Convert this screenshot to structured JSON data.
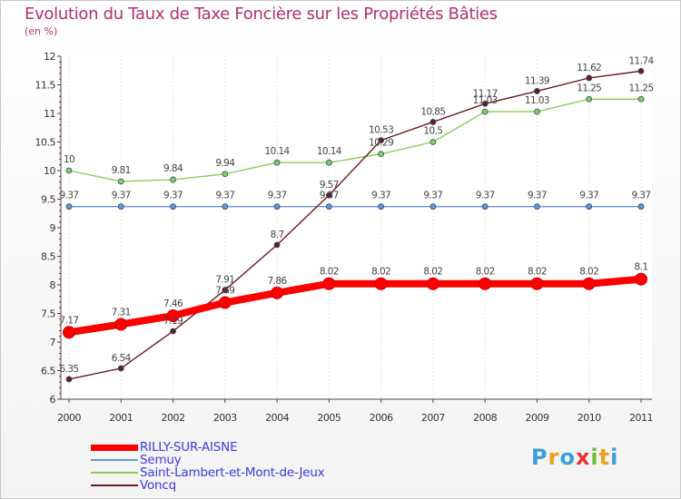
{
  "chart_data": {
    "type": "line",
    "title": "Evolution du Taux de Taxe Foncière sur les Propriétés Bâties",
    "subtitle": "(en %)",
    "categories": [
      "2000",
      "2001",
      "2002",
      "2003",
      "2004",
      "2005",
      "2006",
      "2007",
      "2008",
      "2009",
      "2010",
      "2011"
    ],
    "ylim": [
      6,
      12
    ],
    "yticks": [
      "6",
      "6.5",
      "7",
      "7.5",
      "8",
      "8.5",
      "9",
      "9.5",
      "10",
      "10.5",
      "11",
      "11.5",
      "12"
    ],
    "grid": "vertical dotted",
    "series": [
      {
        "name": "RILLY-SUR-AISNE",
        "color": "#ff0000",
        "values": [
          7.17,
          7.31,
          7.46,
          7.69,
          7.86,
          8.02,
          8.02,
          8.02,
          8.02,
          8.02,
          8.02,
          8.1
        ],
        "labels": [
          "7.17",
          "7.31",
          "7.46",
          "7.69",
          "7.86",
          "8.02",
          "8.02",
          "8.02",
          "8.02",
          "8.02",
          "8.02",
          "8.1"
        ]
      },
      {
        "name": "Semuy",
        "color": "#6699cc",
        "values": [
          9.37,
          9.37,
          9.37,
          9.37,
          9.37,
          9.37,
          9.37,
          9.37,
          9.37,
          9.37,
          9.37,
          9.37
        ],
        "labels": [
          "9.37",
          "9.37",
          "9.37",
          "9.37",
          "9.37",
          "9.37",
          "9.37",
          "9.37",
          "9.37",
          "9.37",
          "9.37",
          "9.37"
        ]
      },
      {
        "name": "Saint-Lambert-et-Mont-de-Jeux",
        "color": "#88cc55",
        "values": [
          10,
          9.81,
          9.84,
          9.94,
          10.14,
          10.14,
          10.29,
          10.5,
          11.03,
          11.03,
          11.25,
          11.25
        ],
        "labels": [
          "10",
          "9.81",
          "9.84",
          "9.94",
          "10.14",
          "10.14",
          "10.29",
          "10.5",
          "11.03",
          "11.03",
          "11.25",
          "11.25"
        ]
      },
      {
        "name": "Voncq",
        "color": "#6b1c1c",
        "values": [
          6.35,
          6.54,
          7.19,
          7.91,
          8.7,
          9.57,
          10.53,
          10.85,
          11.17,
          11.39,
          11.62,
          11.74
        ],
        "labels": [
          "6.35",
          "6.54",
          "7.19",
          "7.91",
          "8.7",
          "9.57",
          "10.53",
          "10.85",
          "11.17",
          "11.39",
          "11.62",
          "11.74"
        ]
      }
    ]
  },
  "legend": [
    {
      "label": "RILLY-SUR-AISNE",
      "color": "#ff0000"
    },
    {
      "label": "Semuy",
      "color": "#6699cc"
    },
    {
      "label": "Saint-Lambert-et-Mont-de-Jeux",
      "color": "#88cc55"
    },
    {
      "label": "Voncq",
      "color": "#6b1c1c"
    }
  ],
  "logo": {
    "letters": [
      "P",
      "r",
      "o",
      "x",
      "i",
      "t",
      "i"
    ],
    "colors": [
      "#3aa0d8",
      "#f0a020",
      "#3aa0d8",
      "#e83030",
      "#6cbd3a",
      "#f0a020",
      "#3aa0d8"
    ]
  }
}
